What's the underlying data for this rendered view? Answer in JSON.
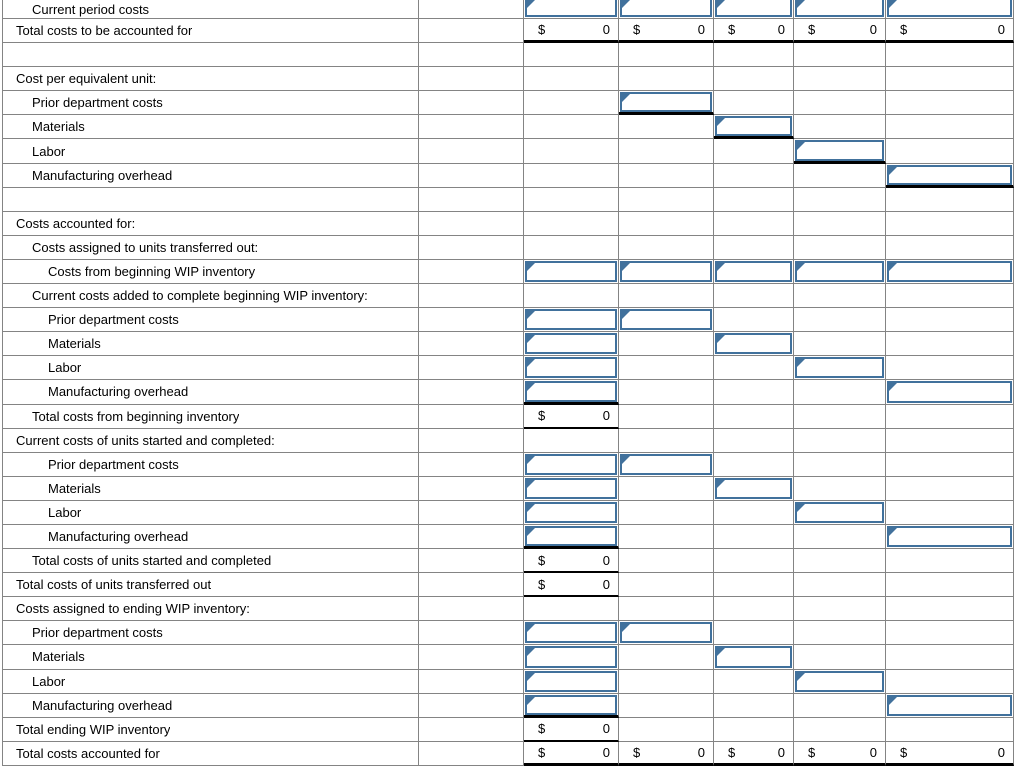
{
  "money": {
    "symbol": "$",
    "zero": "0"
  },
  "colors": {
    "input_border": "#41719c",
    "gridline": "#848484",
    "total_underline": "#000000",
    "background": "#ffffff"
  },
  "cell_codes": {
    "": "empty cell",
    "I": "answer input box",
    "IC": "answer input box clipped at top of screenshot",
    "IS": "answer input box with black sum underline",
    "M": "money total cell",
    "MS": "money total cell with black underline",
    "MT": "money total cell with thick black underline"
  },
  "rows": [
    {
      "label": "Current period costs",
      "indent": 1,
      "cells": [
        "IC",
        "IC",
        "IC",
        "IC",
        "IC"
      ]
    },
    {
      "label": "Total costs to be accounted for",
      "indent": 0,
      "cells": [
        "MT",
        "MT",
        "MT",
        "MT",
        "MT"
      ]
    },
    {
      "label": "",
      "indent": 0,
      "cells": [
        "",
        "",
        "",
        "",
        ""
      ]
    },
    {
      "label": "Cost per equivalent unit:",
      "indent": 0,
      "cells": [
        "",
        "",
        "",
        "",
        ""
      ]
    },
    {
      "label": "Prior department costs",
      "indent": 1,
      "cells": [
        "",
        "IS",
        "",
        "",
        ""
      ]
    },
    {
      "label": "Materials",
      "indent": 1,
      "cells": [
        "",
        "",
        "IS",
        "",
        ""
      ]
    },
    {
      "label": "Labor",
      "indent": 1,
      "cells": [
        "",
        "",
        "",
        "IS",
        ""
      ]
    },
    {
      "label": "Manufacturing overhead",
      "indent": 1,
      "cells": [
        "",
        "",
        "",
        "",
        "IS"
      ]
    },
    {
      "label": "",
      "indent": 0,
      "cells": [
        "",
        "",
        "",
        "",
        ""
      ]
    },
    {
      "label": "Costs accounted for:",
      "indent": 0,
      "cells": [
        "",
        "",
        "",
        "",
        ""
      ]
    },
    {
      "label": "Costs assigned to units transferred out:",
      "indent": 1,
      "cells": [
        "",
        "",
        "",
        "",
        ""
      ]
    },
    {
      "label": "Costs from beginning WIP inventory",
      "indent": 2,
      "cells": [
        "I",
        "I",
        "I",
        "I",
        "I"
      ]
    },
    {
      "label": "Current costs added to complete beginning WIP inventory:",
      "indent": 1,
      "cells": [
        "",
        "",
        "",
        "",
        ""
      ]
    },
    {
      "label": "Prior department costs",
      "indent": 2,
      "cells": [
        "I",
        "I",
        "",
        "",
        ""
      ]
    },
    {
      "label": "Materials",
      "indent": 2,
      "cells": [
        "I",
        "",
        "I",
        "",
        ""
      ]
    },
    {
      "label": "Labor",
      "indent": 2,
      "cells": [
        "I",
        "",
        "",
        "I",
        ""
      ]
    },
    {
      "label": "Manufacturing overhead",
      "indent": 2,
      "cells": [
        "IS",
        "",
        "",
        "",
        "I"
      ]
    },
    {
      "label": "Total costs from beginning inventory",
      "indent": 1,
      "cells": [
        "MS",
        "",
        "",
        "",
        ""
      ]
    },
    {
      "label": "Current costs of units started and completed:",
      "indent": 0,
      "cells": [
        "",
        "",
        "",
        "",
        ""
      ]
    },
    {
      "label": "Prior department costs",
      "indent": 2,
      "cells": [
        "I",
        "I",
        "",
        "",
        ""
      ]
    },
    {
      "label": "Materials",
      "indent": 2,
      "cells": [
        "I",
        "",
        "I",
        "",
        ""
      ]
    },
    {
      "label": "Labor",
      "indent": 2,
      "cells": [
        "I",
        "",
        "",
        "I",
        ""
      ]
    },
    {
      "label": "Manufacturing overhead",
      "indent": 2,
      "cells": [
        "IS",
        "",
        "",
        "",
        "I"
      ]
    },
    {
      "label": "Total costs of units started and completed",
      "indent": 1,
      "cells": [
        "MS",
        "",
        "",
        "",
        ""
      ]
    },
    {
      "label": "Total costs of units transferred out",
      "indent": 0,
      "cells": [
        "MS",
        "",
        "",
        "",
        ""
      ]
    },
    {
      "label": "Costs assigned to ending WIP inventory:",
      "indent": 0,
      "cells": [
        "",
        "",
        "",
        "",
        ""
      ]
    },
    {
      "label": "Prior department costs",
      "indent": 1,
      "cells": [
        "I",
        "I",
        "",
        "",
        ""
      ]
    },
    {
      "label": "Materials",
      "indent": 1,
      "cells": [
        "I",
        "",
        "I",
        "",
        ""
      ]
    },
    {
      "label": "Labor",
      "indent": 1,
      "cells": [
        "I",
        "",
        "",
        "I",
        ""
      ]
    },
    {
      "label": "Manufacturing overhead",
      "indent": 1,
      "cells": [
        "IS",
        "",
        "",
        "",
        "I"
      ]
    },
    {
      "label": "Total ending WIP inventory",
      "indent": 0,
      "cells": [
        "MS",
        "",
        "",
        "",
        ""
      ]
    },
    {
      "label": "Total costs accounted for",
      "indent": 0,
      "cells": [
        "MT",
        "MT",
        "MT",
        "MT",
        "MT"
      ]
    }
  ]
}
